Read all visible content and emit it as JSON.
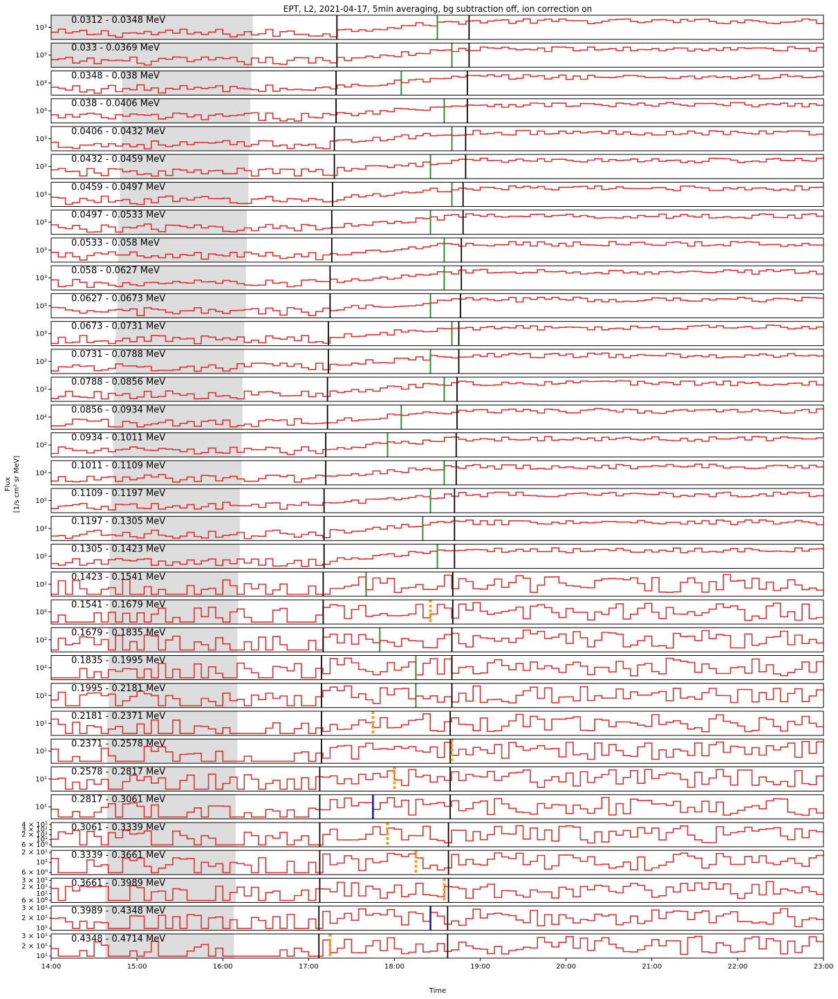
{
  "chart_data": {
    "type": "line",
    "title": "EPT, L2, 2021-04-17, 5min averaging, bg subtraction off, ion correction on",
    "xlabel": "Time",
    "ylabel_line1": "Flux",
    "ylabel_line2": "[1/s cm² sr MeV]",
    "x_ticks": [
      "14:00",
      "15:00",
      "16:00",
      "17:00",
      "18:00",
      "19:00",
      "20:00",
      "21:00",
      "22:00",
      "23:00"
    ],
    "x_range_hours": [
      14,
      23
    ],
    "y_scale": "log",
    "grid": false,
    "colors": {
      "flux": "#e03030",
      "onset": "#1a8a1a",
      "marker": "#000000",
      "peak": "#f5a01a",
      "alt_onset": "#1010c0",
      "background_window": "#dddddd"
    },
    "panels": [
      {
        "channel": "0.0312 - 0.0348 MeV",
        "ytick": "10³",
        "bg": [
          14.0,
          16.35
        ],
        "black_line": 17.33,
        "green": 18.5,
        "second_black": 18.87
      },
      {
        "channel": "0.033 - 0.0369 MeV",
        "ytick": "10³",
        "bg": [
          14.0,
          16.35
        ],
        "black_line": 17.33,
        "green": 18.67,
        "second_black": 18.87
      },
      {
        "channel": "0.0348 - 0.038 MeV",
        "ytick": "10³",
        "bg": [
          14.83,
          16.33
        ],
        "black_line": 17.32,
        "green": 18.08,
        "second_black": 18.85
      },
      {
        "channel": "0.038 - 0.0406 MeV",
        "ytick": "10³",
        "bg": [
          14.82,
          16.32
        ],
        "black_line": 17.32,
        "green": 18.58,
        "second_black": 18.85
      },
      {
        "channel": "0.0406 - 0.0432 MeV",
        "ytick": "10³",
        "bg": [
          14.82,
          16.32
        ],
        "black_line": 17.3,
        "green": 18.67,
        "second_black": 18.83
      },
      {
        "channel": "0.0432 - 0.0459 MeV",
        "ytick": "10³",
        "bg": [
          14.8,
          16.3
        ],
        "black_line": 17.3,
        "green": 18.42,
        "second_black": 18.83
      },
      {
        "channel": "0.0459 - 0.0497 MeV",
        "ytick": "10³",
        "bg": [
          14.8,
          16.3
        ],
        "black_line": 17.28,
        "green": 18.67,
        "second_black": 18.8
      },
      {
        "channel": "0.0497 - 0.0533 MeV",
        "ytick": "10³",
        "bg": [
          14.78,
          16.28
        ],
        "black_line": 17.27,
        "green": 18.42,
        "second_black": 18.8
      },
      {
        "channel": "0.0533 - 0.058 MeV",
        "ytick": "10³",
        "bg": [
          14.78,
          16.28
        ],
        "black_line": 17.27,
        "green": 18.58,
        "second_black": 18.78
      },
      {
        "channel": "0.058 - 0.0627 MeV",
        "ytick": "10³",
        "bg": [
          14.77,
          16.27
        ],
        "black_line": 17.25,
        "green": 18.58,
        "second_black": 18.78
      },
      {
        "channel": "0.0627 - 0.0673 MeV",
        "ytick": "10³",
        "bg": [
          14.77,
          16.27
        ],
        "black_line": 17.25,
        "green": 18.42,
        "second_black": 18.77
      },
      {
        "channel": "0.0673 - 0.0731 MeV",
        "ytick": "10³",
        "bg": [
          14.75,
          16.25
        ],
        "black_line": 17.23,
        "green": 18.67,
        "second_black": 18.75
      },
      {
        "channel": "0.0731 - 0.0788 MeV",
        "ytick": "10²",
        "bg": [
          14.75,
          16.25
        ],
        "black_line": 17.23,
        "green": 18.42,
        "second_black": 18.75
      },
      {
        "channel": "0.0788 - 0.0856 MeV",
        "ytick": "10²",
        "bg": [
          14.73,
          16.23
        ],
        "black_line": 17.22,
        "green": 18.58,
        "second_black": 18.73
      },
      {
        "channel": "0.0856 - 0.0934 MeV",
        "ytick": "10²",
        "bg": [
          14.73,
          16.23
        ],
        "black_line": 17.22,
        "green": 18.08,
        "second_black": 18.73
      },
      {
        "channel": "0.0934 - 0.1011 MeV",
        "ytick": "10²",
        "bg": [
          14.72,
          16.22
        ],
        "black_line": 17.2,
        "green": 17.92,
        "second_black": 18.72
      },
      {
        "channel": "0.1011 - 0.1109 MeV",
        "ytick": "10²",
        "bg": [
          14.72,
          16.22
        ],
        "black_line": 17.2,
        "green": 18.58,
        "second_black": 18.72
      },
      {
        "channel": "0.1109 - 0.1197 MeV",
        "ytick": "10²",
        "bg": [
          14.7,
          16.2
        ],
        "black_line": 17.18,
        "green": 18.42,
        "second_black": 18.7
      },
      {
        "channel": "0.1197 - 0.1305 MeV",
        "ytick": "10²",
        "bg": [
          14.7,
          16.2
        ],
        "black_line": 17.18,
        "green": 18.33,
        "second_black": 18.7
      },
      {
        "channel": "0.1305 - 0.1423 MeV",
        "ytick": "10²",
        "bg": [
          14.68,
          16.2
        ],
        "black_line": 17.18,
        "green": 18.5,
        "second_black": 18.7
      },
      {
        "channel": "0.1423 - 0.1541 MeV",
        "ytick": "10²",
        "bg": [
          14.68,
          16.18
        ],
        "black_line": 17.17,
        "green": 17.67,
        "second_black": 18.68
      },
      {
        "channel": "0.1541 - 0.1679 MeV",
        "ytick": "10²",
        "bg": [
          14.68,
          16.18
        ],
        "black_line": 17.17,
        "orange": 18.42,
        "second_black": 18.68
      },
      {
        "channel": "0.1679 - 0.1835 MeV",
        "ytick": "10²",
        "bg": [
          14.67,
          16.17
        ],
        "black_line": 17.17,
        "green": 17.83,
        "second_black": 18.67
      },
      {
        "channel": "0.1835 - 0.1995 MeV",
        "ytick": "10²",
        "bg": [
          14.67,
          16.17
        ],
        "black_line": 17.15,
        "green": 18.25,
        "second_black": 18.67
      },
      {
        "channel": "0.1995 - 0.2181 MeV",
        "ytick": "10²",
        "bg": [
          14.67,
          16.17
        ],
        "black_line": 17.15,
        "green": 18.25,
        "second_black": 18.67
      },
      {
        "channel": "0.2181 - 0.2371 MeV",
        "ytick": "10¹",
        "bg": [
          14.65,
          16.17
        ],
        "black_line": 17.15,
        "orange": 17.75,
        "second_black": 18.65
      },
      {
        "channel": "0.2371 - 0.2578 MeV",
        "ytick": "10¹",
        "bg": [
          14.65,
          16.17
        ],
        "black_line": 17.15,
        "orange": 18.67,
        "second_black": 18.65
      },
      {
        "channel": "0.2578 - 0.2817 MeV",
        "ytick": "10¹",
        "bg": [
          14.65,
          16.15
        ],
        "black_line": 17.13,
        "orange": 18.0,
        "second_black": 18.65
      },
      {
        "channel": "0.2817 - 0.3061 MeV",
        "ytick": "10¹",
        "bg": [
          14.65,
          16.15
        ],
        "black_line": 17.13,
        "blue": 17.75,
        "second_black": 18.65
      },
      {
        "channel": "0.3061 - 0.3339 MeV",
        "yticks": [
          "4 × 10¹",
          "3 × 10¹",
          "2 × 10¹",
          "10¹",
          "6 × 10⁰"
        ],
        "bg": [
          14.65,
          16.15
        ],
        "black_line": 17.13,
        "orange": 17.92,
        "second_black": 18.63
      },
      {
        "channel": "0.3339 - 0.3661 MeV",
        "yticks": [
          "2 × 10¹",
          "10¹",
          "6 × 10⁰"
        ],
        "bg": [
          14.65,
          16.15
        ],
        "black_line": 17.13,
        "orange": 18.25,
        "second_black": 18.63
      },
      {
        "channel": "0.3661 - 0.3989 MeV",
        "yticks": [
          "3 × 10¹",
          "2 × 10¹",
          "10¹",
          "6 × 10⁰"
        ],
        "bg": [
          14.63,
          16.15
        ],
        "black_line": 17.13,
        "orange": 18.58,
        "second_black": 18.63
      },
      {
        "channel": "0.3989 - 0.4348 MeV",
        "yticks": [
          "3 × 10¹",
          "2 × 10¹",
          "10¹"
        ],
        "bg": [
          14.63,
          16.13
        ],
        "black_line": 17.12,
        "blue": 18.42,
        "second_black": 18.62
      },
      {
        "channel": "0.4348 - 0.4714 MeV",
        "yticks": [
          "3 × 10¹",
          "2 × 10¹",
          "10¹"
        ],
        "bg": [
          14.63,
          16.13
        ],
        "black_line": 17.12,
        "orange": 17.25,
        "second_black": 18.62
      }
    ]
  }
}
